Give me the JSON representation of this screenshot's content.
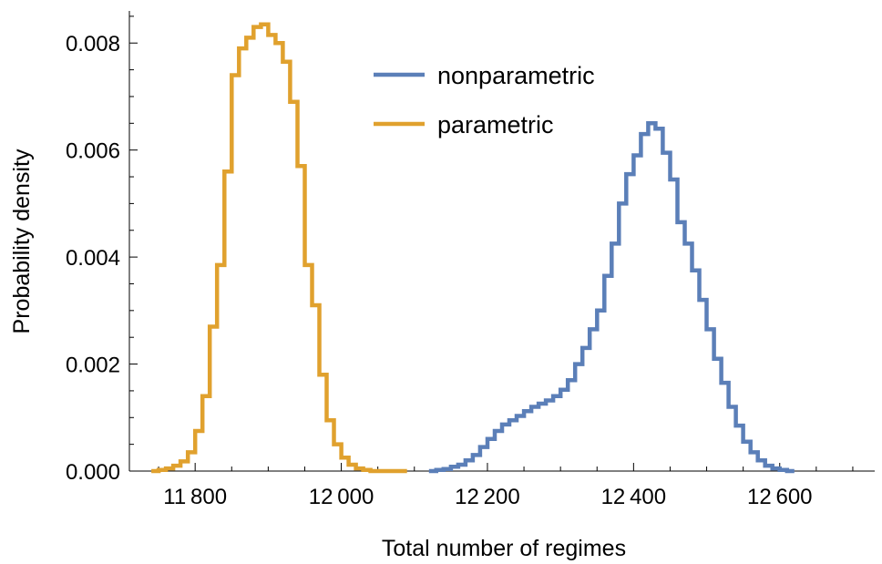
{
  "chart_data": {
    "type": "line",
    "title": "",
    "xlabel": "Total number of regimes",
    "ylabel": "Probability density",
    "xlim": [
      11710,
      12730
    ],
    "ylim": [
      0,
      0.0086
    ],
    "x_ticks": [
      11800,
      12000,
      12200,
      12400,
      12600
    ],
    "x_tick_labels": [
      "11 800",
      "12 000",
      "12 200",
      "12 400",
      "12 600"
    ],
    "y_ticks": [
      0,
      0.002,
      0.004,
      0.006,
      0.008
    ],
    "y_tick_labels": [
      "0.000",
      "0.002",
      "0.004",
      "0.006",
      "0.008"
    ],
    "legend_position": "top-right",
    "grid": false,
    "series": [
      {
        "name": "nonparametric",
        "color": "#5b7fb8",
        "bin_edges": [
          12120,
          12130,
          12140,
          12150,
          12160,
          12170,
          12180,
          12190,
          12200,
          12210,
          12220,
          12230,
          12240,
          12250,
          12260,
          12270,
          12280,
          12290,
          12300,
          12310,
          12320,
          12330,
          12340,
          12350,
          12360,
          12370,
          12380,
          12390,
          12400,
          12410,
          12420,
          12430,
          12440,
          12450,
          12460,
          12470,
          12480,
          12490,
          12500,
          12510,
          12520,
          12530,
          12540,
          12550,
          12560,
          12570,
          12580,
          12590,
          12600,
          12610,
          12620
        ],
        "densities": [
          0.0,
          2e-05,
          4e-05,
          8e-05,
          0.00012,
          0.0002,
          0.0003,
          0.00045,
          0.0006,
          0.00075,
          0.00087,
          0.00095,
          0.00103,
          0.00112,
          0.0012,
          0.00126,
          0.00132,
          0.0014,
          0.00152,
          0.0017,
          0.002,
          0.0023,
          0.00265,
          0.003,
          0.00365,
          0.00425,
          0.005,
          0.00555,
          0.0059,
          0.0063,
          0.0065,
          0.0064,
          0.00595,
          0.00545,
          0.00465,
          0.00425,
          0.00375,
          0.0032,
          0.00265,
          0.0021,
          0.00165,
          0.0012,
          0.00085,
          0.00055,
          0.00035,
          0.0002,
          0.0001,
          5e-05,
          2e-05,
          0.0
        ]
      },
      {
        "name": "parametric",
        "color": "#e0a12e",
        "bin_edges": [
          11740,
          11750,
          11760,
          11770,
          11780,
          11790,
          11800,
          11810,
          11820,
          11830,
          11840,
          11850,
          11860,
          11870,
          11880,
          11890,
          11900,
          11910,
          11920,
          11930,
          11940,
          11950,
          11960,
          11970,
          11980,
          11990,
          12000,
          12010,
          12020,
          12030,
          12040,
          12050,
          12060,
          12070,
          12080,
          12090
        ],
        "densities": [
          0.0,
          2e-05,
          5e-05,
          0.0001,
          0.00018,
          0.00035,
          0.00075,
          0.0014,
          0.0027,
          0.00385,
          0.0056,
          0.0074,
          0.0079,
          0.0081,
          0.0083,
          0.00835,
          0.00815,
          0.008,
          0.00765,
          0.0069,
          0.0057,
          0.00385,
          0.0031,
          0.0018,
          0.00095,
          0.0005,
          0.00025,
          0.00012,
          5e-05,
          2e-05,
          0.0,
          0.0,
          0.0,
          0.0,
          0.0
        ]
      }
    ]
  }
}
